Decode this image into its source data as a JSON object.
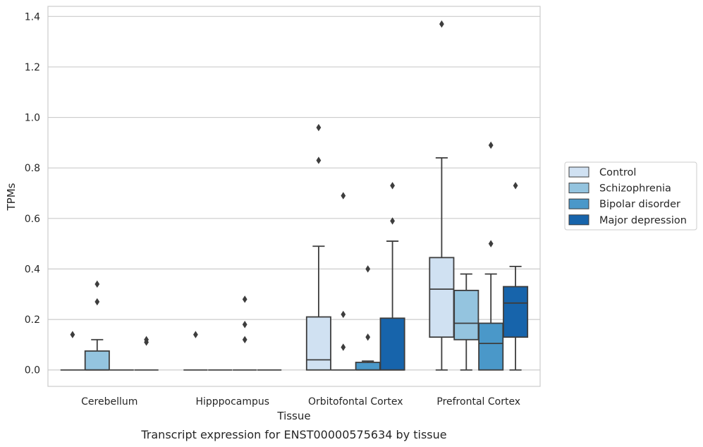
{
  "chart_data": {
    "type": "box",
    "title": "",
    "caption": "Transcript expression for ENST00000575634 by tissue",
    "xlabel": "Tissue",
    "ylabel": "TPMs",
    "ylim": [
      -0.065,
      1.44
    ],
    "yticks": [
      0.0,
      0.2,
      0.4,
      0.6,
      0.8,
      1.0,
      1.2,
      1.4
    ],
    "ytick_labels": [
      "0.0",
      "0.2",
      "0.4",
      "0.6",
      "0.8",
      "1.0",
      "1.2",
      "1.4"
    ],
    "grid": "horizontal",
    "legend_position": "right",
    "categories": [
      "Cerebellum",
      "Hipppocampus",
      "Orbitofontal Cortex",
      "Prefrontal Cortex"
    ],
    "series": [
      {
        "name": "Control",
        "color": "#d0e1f2",
        "boxes": [
          {
            "whislo": 0,
            "q1": 0,
            "med": 0,
            "q3": 0,
            "whishi": 0,
            "fliers": [
              0.14
            ]
          },
          {
            "whislo": 0,
            "q1": 0,
            "med": 0,
            "q3": 0,
            "whishi": 0,
            "fliers": [
              0.14
            ]
          },
          {
            "whislo": 0,
            "q1": 0,
            "med": 0.04,
            "q3": 0.21,
            "whishi": 0.49,
            "fliers": [
              0.83,
              0.96
            ]
          },
          {
            "whislo": 0,
            "q1": 0.13,
            "med": 0.32,
            "q3": 0.445,
            "whishi": 0.84,
            "fliers": [
              1.37
            ]
          }
        ]
      },
      {
        "name": "Schizophrenia",
        "color": "#94c4df",
        "boxes": [
          {
            "whislo": 0,
            "q1": 0,
            "med": 0,
            "q3": 0.075,
            "whishi": 0.12,
            "fliers": [
              0.27,
              0.34
            ]
          },
          {
            "whislo": 0,
            "q1": 0,
            "med": 0,
            "q3": 0,
            "whishi": 0,
            "fliers": []
          },
          {
            "whislo": 0,
            "q1": 0,
            "med": 0,
            "q3": 0,
            "whishi": 0,
            "fliers": [
              0.09,
              0.22,
              0.69
            ]
          },
          {
            "whislo": 0,
            "q1": 0.12,
            "med": 0.185,
            "q3": 0.315,
            "whishi": 0.38,
            "fliers": []
          }
        ]
      },
      {
        "name": "Bipolar disorder",
        "color": "#4a98c9",
        "boxes": [
          {
            "whislo": 0,
            "q1": 0,
            "med": 0,
            "q3": 0,
            "whishi": 0,
            "fliers": []
          },
          {
            "whislo": 0,
            "q1": 0,
            "med": 0,
            "q3": 0,
            "whishi": 0,
            "fliers": [
              0.12,
              0.18,
              0.28
            ]
          },
          {
            "whislo": 0,
            "q1": 0,
            "med": 0,
            "q3": 0.03,
            "whishi": 0.035,
            "fliers": [
              0.13,
              0.4
            ]
          },
          {
            "whislo": 0,
            "q1": 0,
            "med": 0.105,
            "q3": 0.185,
            "whishi": 0.38,
            "fliers": [
              0.5,
              0.89
            ]
          }
        ]
      },
      {
        "name": "Major depression",
        "color": "#1764ab",
        "boxes": [
          {
            "whislo": 0,
            "q1": 0,
            "med": 0,
            "q3": 0,
            "whishi": 0,
            "fliers": [
              0.11,
              0.12
            ]
          },
          {
            "whislo": 0,
            "q1": 0,
            "med": 0,
            "q3": 0,
            "whishi": 0,
            "fliers": []
          },
          {
            "whislo": 0,
            "q1": 0,
            "med": 0,
            "q3": 0.205,
            "whishi": 0.51,
            "fliers": [
              0.59,
              0.73
            ]
          },
          {
            "whislo": 0,
            "q1": 0.13,
            "med": 0.265,
            "q3": 0.33,
            "whishi": 0.41,
            "fliers": [
              0.73
            ]
          }
        ]
      }
    ]
  }
}
